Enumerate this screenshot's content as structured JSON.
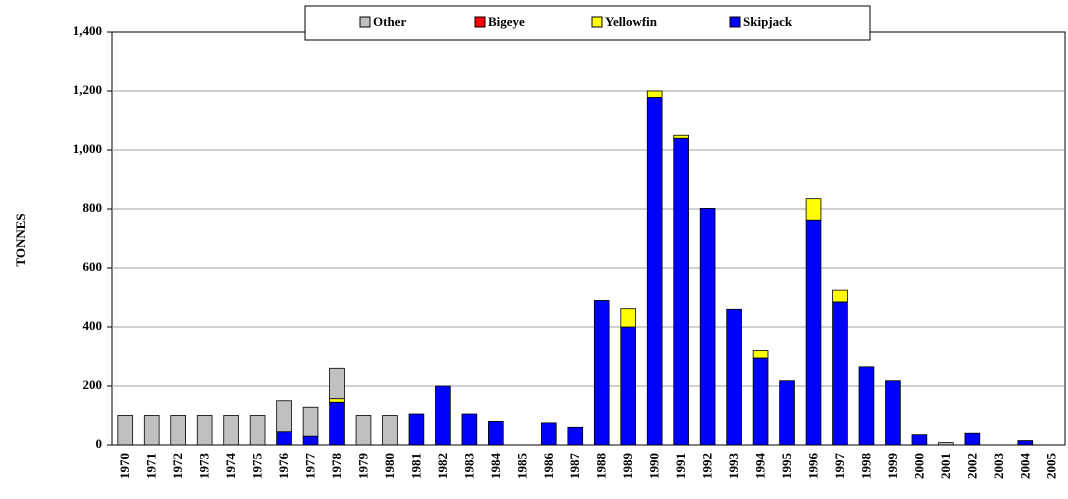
{
  "chart_data": {
    "type": "bar",
    "stacked": true,
    "y_label": "TONNES",
    "categories": [
      "1970",
      "1971",
      "1972",
      "1973",
      "1974",
      "1975",
      "1976",
      "1977",
      "1978",
      "1979",
      "1980",
      "1981",
      "1982",
      "1983",
      "1984",
      "1985",
      "1986",
      "1987",
      "1988",
      "1989",
      "1990",
      "1991",
      "1992",
      "1993",
      "1994",
      "1995",
      "1996",
      "1997",
      "1998",
      "1999",
      "2000",
      "2001",
      "2002",
      "2003",
      "2004",
      "2005"
    ],
    "series": [
      {
        "name": "Skipjack",
        "color": "#0000ff",
        "values": [
          0,
          0,
          0,
          0,
          0,
          0,
          45,
          30,
          145,
          0,
          0,
          105,
          200,
          105,
          80,
          0,
          75,
          60,
          490,
          400,
          1178,
          1040,
          802,
          460,
          295,
          218,
          762,
          485,
          265,
          218,
          35,
          0,
          40,
          0,
          15,
          0
        ]
      },
      {
        "name": "Yellowfin",
        "color": "#ffff00",
        "values": [
          0,
          0,
          0,
          0,
          0,
          0,
          0,
          0,
          12,
          0,
          0,
          0,
          0,
          0,
          0,
          0,
          0,
          0,
          0,
          62,
          22,
          10,
          0,
          0,
          25,
          0,
          73,
          40,
          0,
          0,
          0,
          0,
          0,
          0,
          0,
          0
        ]
      },
      {
        "name": "Bigeye",
        "color": "#ff0000",
        "values": [
          0,
          0,
          0,
          0,
          0,
          0,
          0,
          0,
          0,
          0,
          0,
          0,
          0,
          0,
          0,
          0,
          0,
          0,
          0,
          0,
          0,
          0,
          0,
          0,
          0,
          0,
          0,
          0,
          0,
          0,
          0,
          0,
          0,
          0,
          0,
          0
        ]
      },
      {
        "name": "Other",
        "color": "#c0c0c0",
        "values": [
          100,
          100,
          100,
          100,
          100,
          100,
          105,
          98,
          103,
          100,
          100,
          0,
          0,
          0,
          0,
          0,
          0,
          0,
          0,
          0,
          0,
          0,
          0,
          0,
          0,
          0,
          0,
          0,
          0,
          0,
          0,
          8,
          0,
          0,
          0,
          0
        ]
      }
    ],
    "ylim": [
      0,
      1400
    ],
    "yticks": [
      0,
      200,
      400,
      600,
      800,
      {
        "value": 1000,
        "label": "1,000"
      },
      {
        "value": 1200,
        "label": "1,200"
      },
      {
        "value": 1400,
        "label": "1,400"
      }
    ],
    "grid": true,
    "legend": "top"
  }
}
